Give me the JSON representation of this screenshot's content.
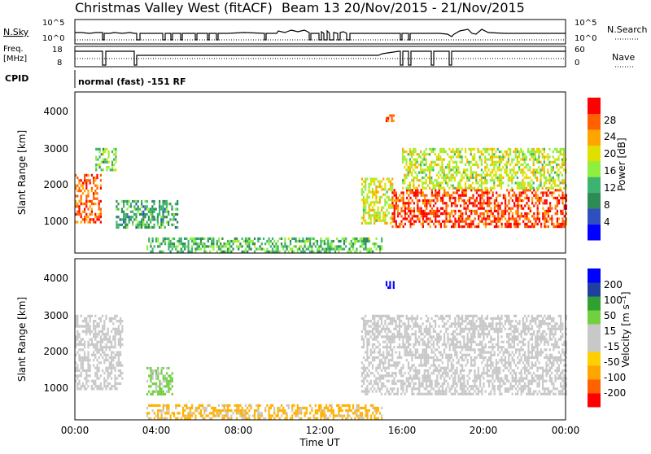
{
  "header": {
    "title": "Christmas Valley West (fitACF)",
    "subtitle": "Beam 13  20/Nov/2015 - 21/Nov/2015"
  },
  "status_panels": {
    "nsky_label": "N.Sky",
    "nsearch_label": "N.Search",
    "freq_label_1": "Freq.",
    "freq_label_2": "[MHz]",
    "nave_label": "Nave",
    "cpid_label": "CPID",
    "cpid_value": "normal (fast) -151 RF",
    "nsky_ticks": [
      "10^5",
      "10^0"
    ],
    "nsearch_ticks": [
      "10^5",
      "10^0"
    ],
    "freq_ticks": [
      "18",
      "8"
    ],
    "nave_ticks": [
      "60",
      "0"
    ]
  },
  "chart_data": [
    {
      "type": "heatmap",
      "name": "power",
      "ylabel": "Slant Range [km]",
      "yticks": [
        "4000",
        "3000",
        "2000",
        "1000"
      ],
      "ylim": [
        180,
        4500
      ],
      "xlim": [
        "00:00",
        "24:00"
      ],
      "colorbar_label": "Power [dB]",
      "colorbar_ticks": [
        "28",
        "24",
        "20",
        "16",
        "12",
        "8",
        "4"
      ],
      "colorbar_colors": [
        "#0000ff",
        "#2f4fc0",
        "#2e8b57",
        "#3cb371",
        "#90ee40",
        "#e0e000",
        "#ffa500",
        "#ff6000",
        "#ff0000"
      ],
      "regions": [
        {
          "t_start": 0.0,
          "t_end": 1.3,
          "r_start": 1000,
          "r_end": 2300,
          "value": 26
        },
        {
          "t_start": 1.0,
          "t_end": 2.0,
          "r_start": 2400,
          "r_end": 3000,
          "value": 14
        },
        {
          "t_start": 2.0,
          "t_end": 5.0,
          "r_start": 900,
          "r_end": 1600,
          "value": 10
        },
        {
          "t_start": 3.5,
          "t_end": 15.0,
          "r_start": 200,
          "r_end": 600,
          "value": 12
        },
        {
          "t_start": 14.0,
          "t_end": 15.5,
          "r_start": 1000,
          "r_end": 2200,
          "value": 18
        },
        {
          "t_start": 15.2,
          "t_end": 15.6,
          "r_start": 3700,
          "r_end": 3900,
          "value": 28
        },
        {
          "t_start": 15.5,
          "t_end": 24.0,
          "r_start": 900,
          "r_end": 1900,
          "value": 28
        },
        {
          "t_start": 16.0,
          "t_end": 24.0,
          "r_start": 1900,
          "r_end": 3000,
          "value": 17
        }
      ]
    },
    {
      "type": "heatmap",
      "name": "velocity",
      "ylabel": "Slant Range [km]",
      "yticks": [
        "4000",
        "3000",
        "2000",
        "1000"
      ],
      "ylim": [
        180,
        4500
      ],
      "xlim": [
        "00:00",
        "24:00"
      ],
      "xticks": [
        "00:00",
        "04:00",
        "08:00",
        "12:00",
        "16:00",
        "20:00",
        "00:00"
      ],
      "xlabel": "Time UT",
      "colorbar_label": "Velocity [m s⁻¹]",
      "colorbar_ticks": [
        "200",
        "100",
        "50",
        "15",
        "-15",
        "-50",
        "-100",
        "-200"
      ],
      "colorbar_colors": [
        "#ff0000",
        "#ff6000",
        "#ffa500",
        "#ffd000",
        "#c8c8c8",
        "#c8c8c8",
        "#70d040",
        "#30a030",
        "#2040a0",
        "#0000ff"
      ],
      "regions": [
        {
          "t_start": 0.0,
          "t_end": 2.3,
          "r_start": 1000,
          "r_end": 3000,
          "value": 0
        },
        {
          "t_start": 3.5,
          "t_end": 4.8,
          "r_start": 900,
          "r_end": 1600,
          "value": 30
        },
        {
          "t_start": 3.5,
          "t_end": 15.0,
          "r_start": 200,
          "r_end": 600,
          "value": -30
        },
        {
          "t_start": 15.2,
          "t_end": 15.6,
          "r_start": 3700,
          "r_end": 3900,
          "value": 200
        },
        {
          "t_start": 14.0,
          "t_end": 24.0,
          "r_start": 900,
          "r_end": 3000,
          "value": 0
        }
      ]
    }
  ]
}
